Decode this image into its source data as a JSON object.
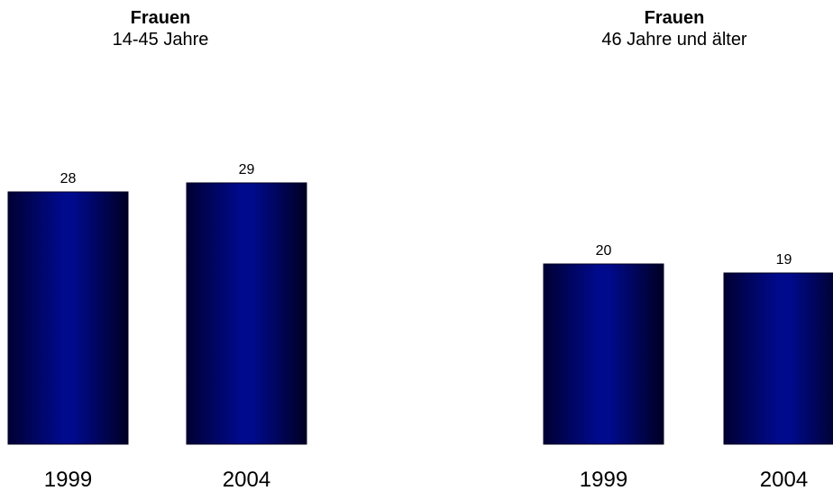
{
  "panels": [
    {
      "title": "Frauen",
      "subtitle": "14-45 Jahre"
    },
    {
      "title": "Frauen",
      "subtitle": "46 Jahre und älter"
    }
  ],
  "chart_data": [
    {
      "type": "bar",
      "title": "Frauen",
      "subtitle": "14-45 Jahre",
      "categories": [
        "1999",
        "2004"
      ],
      "values": [
        28,
        29
      ],
      "color": "#000080"
    },
    {
      "type": "bar",
      "title": "Frauen",
      "subtitle": "46 Jahre und älter",
      "categories": [
        "1999",
        "2004"
      ],
      "values": [
        20,
        19
      ],
      "color": "#000080"
    }
  ]
}
